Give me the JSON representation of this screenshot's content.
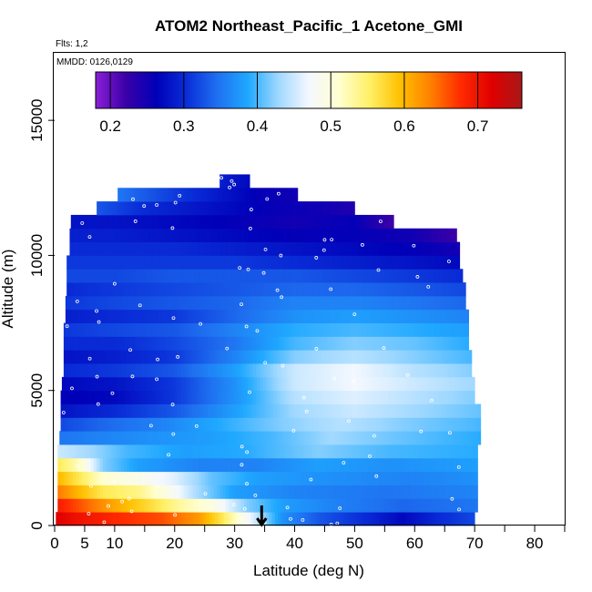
{
  "chart_data": {
    "type": "heatmap",
    "title": "ATOM2 Northeast_Pacific_1 Acetone_GMI",
    "flights_label": "Flts: 1,2",
    "dates_label": "MMDD: 0126,0129",
    "xlabel": "Latitude (deg N)",
    "ylabel": "Altitude (m)",
    "xlim": [
      0,
      85
    ],
    "ylim": [
      0,
      17500
    ],
    "x_ticks": [
      0,
      5,
      10,
      20,
      30,
      40,
      50,
      60,
      70,
      80
    ],
    "x_minor_ticks": [
      15,
      25,
      35,
      45,
      55,
      65,
      75,
      85
    ],
    "y_ticks": [
      0,
      5000,
      10000,
      15000
    ],
    "colorbar": {
      "min": 0.18,
      "max": 0.76,
      "ticks": [
        0.2,
        0.3,
        0.4,
        0.5,
        0.6,
        0.7
      ],
      "tick_labels": [
        "0.2",
        "0.3",
        "0.4",
        "0.5",
        "0.6",
        "0.7"
      ],
      "colors": [
        "#8a1fd6",
        "#3a00a8",
        "#0000b8",
        "#0a2fd8",
        "#1f70f0",
        "#1fa8ff",
        "#9fd8ff",
        "#f4f8ff",
        "#ffffd0",
        "#fff066",
        "#ffc000",
        "#ff8000",
        "#ff2a00",
        "#e00000",
        "#a81818"
      ]
    },
    "marker_latitude": 34.5,
    "altitude_bin_m": 500,
    "profiles": [
      {
        "alt": 250,
        "lat_min": 0.2,
        "lat_max": 70,
        "nodes": [
          [
            0.2,
            0.72
          ],
          [
            4,
            0.7
          ],
          [
            10,
            0.68
          ],
          [
            18,
            0.66
          ],
          [
            24,
            0.62
          ],
          [
            28,
            0.56
          ],
          [
            31,
            0.5
          ],
          [
            34,
            0.44
          ],
          [
            38,
            0.37
          ],
          [
            44,
            0.33
          ],
          [
            52,
            0.3
          ],
          [
            58,
            0.27
          ],
          [
            64,
            0.3
          ],
          [
            70,
            0.32
          ]
        ]
      },
      {
        "alt": 750,
        "lat_min": 0.5,
        "lat_max": 70.5,
        "nodes": [
          [
            0.5,
            0.69
          ],
          [
            4,
            0.66
          ],
          [
            10,
            0.61
          ],
          [
            16,
            0.57
          ],
          [
            21,
            0.53
          ],
          [
            26,
            0.5
          ],
          [
            32,
            0.42
          ],
          [
            38,
            0.38
          ],
          [
            46,
            0.36
          ],
          [
            58,
            0.34
          ],
          [
            70.5,
            0.35
          ]
        ]
      },
      {
        "alt": 1250,
        "lat_min": 0.5,
        "lat_max": 70.5,
        "nodes": [
          [
            0.5,
            0.64
          ],
          [
            4,
            0.6
          ],
          [
            8,
            0.56
          ],
          [
            14,
            0.54
          ],
          [
            19,
            0.49
          ],
          [
            24,
            0.43
          ],
          [
            30,
            0.38
          ],
          [
            40,
            0.36
          ],
          [
            55,
            0.35
          ],
          [
            70.5,
            0.36
          ]
        ]
      },
      {
        "alt": 1750,
        "lat_min": 0.5,
        "lat_max": 70.5,
        "nodes": [
          [
            0.5,
            0.6
          ],
          [
            5,
            0.55
          ],
          [
            8,
            0.51
          ],
          [
            14,
            0.49
          ],
          [
            20,
            0.46
          ],
          [
            26,
            0.41
          ],
          [
            34,
            0.38
          ],
          [
            45,
            0.37
          ],
          [
            60,
            0.36
          ],
          [
            70.5,
            0.37
          ]
        ]
      },
      {
        "alt": 2250,
        "lat_min": 0.5,
        "lat_max": 70.5,
        "nodes": [
          [
            0.5,
            0.56
          ],
          [
            4,
            0.52
          ],
          [
            8,
            0.42
          ],
          [
            14,
            0.38
          ],
          [
            24,
            0.36
          ],
          [
            34,
            0.36
          ],
          [
            44,
            0.38
          ],
          [
            56,
            0.37
          ],
          [
            70.5,
            0.38
          ]
        ]
      },
      {
        "alt": 2750,
        "lat_min": 0.5,
        "lat_max": 70.5,
        "nodes": [
          [
            0.5,
            0.45
          ],
          [
            6,
            0.43
          ],
          [
            12,
            0.4
          ],
          [
            22,
            0.38
          ],
          [
            32,
            0.39
          ],
          [
            44,
            0.42
          ],
          [
            56,
            0.4
          ],
          [
            70.5,
            0.39
          ]
        ]
      },
      {
        "alt": 3250,
        "lat_min": 0.8,
        "lat_max": 71,
        "nodes": [
          [
            0.8,
            0.35
          ],
          [
            8,
            0.36
          ],
          [
            16,
            0.37
          ],
          [
            26,
            0.38
          ],
          [
            36,
            0.4
          ],
          [
            46,
            0.43
          ],
          [
            58,
            0.41
          ],
          [
            71,
            0.39
          ]
        ]
      },
      {
        "alt": 3750,
        "lat_min": 1,
        "lat_max": 71,
        "nodes": [
          [
            1,
            0.32
          ],
          [
            8,
            0.34
          ],
          [
            18,
            0.36
          ],
          [
            28,
            0.39
          ],
          [
            38,
            0.42
          ],
          [
            48,
            0.44
          ],
          [
            58,
            0.42
          ],
          [
            71,
            0.4
          ]
        ]
      },
      {
        "alt": 4250,
        "lat_min": 1,
        "lat_max": 71,
        "nodes": [
          [
            1,
            0.28
          ],
          [
            10,
            0.3
          ],
          [
            20,
            0.33
          ],
          [
            30,
            0.38
          ],
          [
            40,
            0.43
          ],
          [
            50,
            0.45
          ],
          [
            60,
            0.43
          ],
          [
            71,
            0.41
          ]
        ]
      },
      {
        "alt": 4750,
        "lat_min": 1,
        "lat_max": 70,
        "nodes": [
          [
            1,
            0.26
          ],
          [
            10,
            0.27
          ],
          [
            20,
            0.31
          ],
          [
            30,
            0.37
          ],
          [
            40,
            0.44
          ],
          [
            50,
            0.46
          ],
          [
            60,
            0.44
          ],
          [
            70,
            0.42
          ]
        ]
      },
      {
        "alt": 5250,
        "lat_min": 1.2,
        "lat_max": 70,
        "nodes": [
          [
            1.2,
            0.27
          ],
          [
            10,
            0.28
          ],
          [
            20,
            0.31
          ],
          [
            30,
            0.37
          ],
          [
            40,
            0.45
          ],
          [
            50,
            0.47
          ],
          [
            60,
            0.45
          ],
          [
            70,
            0.43
          ]
        ]
      },
      {
        "alt": 5750,
        "lat_min": 1.5,
        "lat_max": 69.5,
        "nodes": [
          [
            1.5,
            0.3
          ],
          [
            10,
            0.31
          ],
          [
            20,
            0.33
          ],
          [
            30,
            0.38
          ],
          [
            40,
            0.45
          ],
          [
            50,
            0.47
          ],
          [
            60,
            0.44
          ],
          [
            69.5,
            0.42
          ]
        ]
      },
      {
        "alt": 6250,
        "lat_min": 1.5,
        "lat_max": 69.5,
        "nodes": [
          [
            1.5,
            0.28
          ],
          [
            10,
            0.29
          ],
          [
            20,
            0.31
          ],
          [
            30,
            0.36
          ],
          [
            40,
            0.42
          ],
          [
            50,
            0.44
          ],
          [
            60,
            0.42
          ],
          [
            69.5,
            0.4
          ]
        ]
      },
      {
        "alt": 6750,
        "lat_min": 1.5,
        "lat_max": 69,
        "nodes": [
          [
            1.5,
            0.3
          ],
          [
            10,
            0.3
          ],
          [
            20,
            0.32
          ],
          [
            30,
            0.35
          ],
          [
            40,
            0.4
          ],
          [
            50,
            0.42
          ],
          [
            60,
            0.41
          ],
          [
            69,
            0.39
          ]
        ]
      },
      {
        "alt": 7250,
        "lat_min": 1.5,
        "lat_max": 69,
        "nodes": [
          [
            1.5,
            0.31
          ],
          [
            10,
            0.32
          ],
          [
            20,
            0.33
          ],
          [
            30,
            0.36
          ],
          [
            40,
            0.39
          ],
          [
            50,
            0.4
          ],
          [
            60,
            0.39
          ],
          [
            69,
            0.38
          ]
        ]
      },
      {
        "alt": 7750,
        "lat_min": 1.8,
        "lat_max": 69,
        "nodes": [
          [
            1.8,
            0.29
          ],
          [
            10,
            0.3
          ],
          [
            20,
            0.31
          ],
          [
            30,
            0.34
          ],
          [
            40,
            0.37
          ],
          [
            50,
            0.38
          ],
          [
            60,
            0.37
          ],
          [
            69,
            0.36
          ]
        ]
      },
      {
        "alt": 8250,
        "lat_min": 1.8,
        "lat_max": 68.5,
        "nodes": [
          [
            1.8,
            0.31
          ],
          [
            10,
            0.32
          ],
          [
            20,
            0.33
          ],
          [
            30,
            0.34
          ],
          [
            40,
            0.36
          ],
          [
            50,
            0.36
          ],
          [
            60,
            0.35
          ],
          [
            68.5,
            0.34
          ]
        ]
      },
      {
        "alt": 8750,
        "lat_min": 2,
        "lat_max": 68.5,
        "nodes": [
          [
            2,
            0.3
          ],
          [
            10,
            0.31
          ],
          [
            20,
            0.32
          ],
          [
            30,
            0.33
          ],
          [
            40,
            0.34
          ],
          [
            50,
            0.34
          ],
          [
            60,
            0.33
          ],
          [
            68.5,
            0.32
          ]
        ]
      },
      {
        "alt": 9250,
        "lat_min": 2,
        "lat_max": 68,
        "nodes": [
          [
            2,
            0.32
          ],
          [
            10,
            0.32
          ],
          [
            20,
            0.33
          ],
          [
            30,
            0.33
          ],
          [
            40,
            0.33
          ],
          [
            50,
            0.32
          ],
          [
            60,
            0.31
          ],
          [
            68,
            0.3
          ]
        ]
      },
      {
        "alt": 9750,
        "lat_min": 2,
        "lat_max": 67.5,
        "nodes": [
          [
            2,
            0.31
          ],
          [
            10,
            0.31
          ],
          [
            20,
            0.31
          ],
          [
            30,
            0.31
          ],
          [
            40,
            0.3
          ],
          [
            50,
            0.29
          ],
          [
            60,
            0.28
          ],
          [
            67.5,
            0.27
          ]
        ]
      },
      {
        "alt": 10250,
        "lat_min": 2.5,
        "lat_max": 67.5,
        "nodes": [
          [
            2.5,
            0.3
          ],
          [
            10,
            0.3
          ],
          [
            20,
            0.3
          ],
          [
            30,
            0.29
          ],
          [
            40,
            0.28
          ],
          [
            50,
            0.27
          ],
          [
            60,
            0.26
          ],
          [
            67.5,
            0.25
          ]
        ]
      },
      {
        "alt": 10750,
        "lat_min": 2.5,
        "lat_max": 67,
        "nodes": [
          [
            2.5,
            0.29
          ],
          [
            10,
            0.29
          ],
          [
            20,
            0.28
          ],
          [
            30,
            0.27
          ],
          [
            40,
            0.26
          ],
          [
            50,
            0.26
          ],
          [
            60,
            0.25
          ],
          [
            67,
            0.22
          ]
        ]
      },
      {
        "alt": 11250,
        "lat_min": 2.7,
        "lat_max": 56.5,
        "nodes": [
          [
            2.7,
            0.28
          ],
          [
            10,
            0.28
          ],
          [
            20,
            0.27
          ],
          [
            30,
            0.26
          ],
          [
            40,
            0.25
          ],
          [
            50,
            0.26
          ],
          [
            56.5,
            0.22
          ]
        ]
      },
      {
        "alt": 11750,
        "lat_min": 7,
        "lat_max": 50,
        "nodes": [
          [
            7,
            0.33
          ],
          [
            15,
            0.3
          ],
          [
            25,
            0.28
          ],
          [
            35,
            0.26
          ],
          [
            45,
            0.25
          ],
          [
            50,
            0.24
          ]
        ]
      },
      {
        "alt": 12250,
        "lat_min": 10.5,
        "lat_max": 40.5,
        "nodes": [
          [
            10.5,
            0.35
          ],
          [
            18,
            0.32
          ],
          [
            26,
            0.29
          ],
          [
            34,
            0.26
          ],
          [
            40.5,
            0.25
          ]
        ]
      },
      {
        "alt": 12750,
        "lat_min": 27.5,
        "lat_max": 32.5,
        "nodes": [
          [
            27.5,
            0.29
          ],
          [
            32.5,
            0.27
          ]
        ]
      }
    ]
  }
}
